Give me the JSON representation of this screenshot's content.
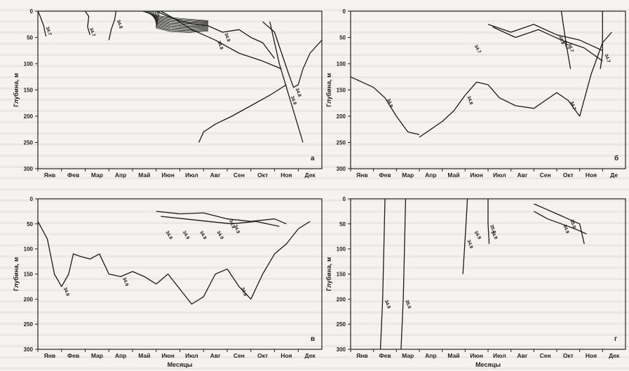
{
  "figure": {
    "y_axis_label": "Глубина, м",
    "x_axis_label": "Месяцы",
    "months_full": [
      "Янв",
      "Фев",
      "Мар",
      "Апр",
      "Май",
      "Июн",
      "Июл",
      "Авг",
      "Сен",
      "Окт",
      "Ноя",
      "Дек"
    ],
    "months_panel_b": [
      "Янв",
      "Фев",
      "Мар",
      "Апр",
      "Май",
      "Июн",
      "Июл",
      "Авг",
      "Сен",
      "Окт",
      "Ноя",
      "Де"
    ],
    "y_ticks": [
      "0",
      "50",
      "100",
      "150",
      "200",
      "250",
      "300"
    ]
  },
  "chart_data": [
    {
      "type": "line",
      "panel_letter": "а",
      "ylim": [
        0,
        300
      ],
      "y_inverted": true,
      "contour_labels": [
        "34.7",
        "34.7",
        "34.8",
        "34.9",
        "34.8",
        "34.8",
        "34.9"
      ],
      "series": [
        {
          "values_month_depth": [
            [
              0.0,
              0
            ],
            [
              0.1,
              10
            ],
            [
              0.25,
              28
            ],
            [
              0.3,
              40
            ],
            [
              0.35,
              48
            ]
          ]
        },
        {
          "values_month_depth": [
            [
              2.0,
              0
            ],
            [
              2.15,
              10
            ],
            [
              2.1,
              30
            ],
            [
              2.2,
              45
            ]
          ]
        },
        {
          "values_month_depth": [
            [
              3.0,
              55
            ],
            [
              3.1,
              35
            ],
            [
              3.25,
              15
            ],
            [
              3.3,
              0
            ]
          ]
        },
        {
          "values_month_depth": [
            [
              5.0,
              0
            ],
            [
              5.5,
              10
            ],
            [
              6.0,
              18
            ],
            [
              6.6,
              25
            ],
            [
              7.2,
              28
            ],
            [
              7.8,
              40
            ],
            [
              8.5,
              35
            ],
            [
              9.0,
              50
            ],
            [
              9.5,
              60
            ],
            [
              10.0,
              90
            ]
          ]
        },
        {
          "values_month_depth": [
            [
              5.2,
              0
            ],
            [
              5.8,
              15
            ],
            [
              6.5,
              35
            ],
            [
              7.5,
              55
            ],
            [
              8.5,
              80
            ],
            [
              9.5,
              95
            ],
            [
              10.3,
              110
            ]
          ]
        },
        {
          "values_month_depth": [
            [
              9.5,
              20
            ],
            [
              10.0,
              40
            ],
            [
              10.3,
              80
            ],
            [
              10.6,
              120
            ],
            [
              10.8,
              145
            ],
            [
              11.0,
              140
            ],
            [
              11.2,
              110
            ],
            [
              11.5,
              80
            ],
            [
              12.0,
              55
            ]
          ]
        },
        {
          "values_month_depth": [
            [
              9.8,
              20
            ],
            [
              10.2,
              100
            ],
            [
              10.6,
              160
            ],
            [
              11.0,
              220
            ],
            [
              11.2,
              250
            ]
          ]
        },
        {
          "values_month_depth": [
            [
              6.8,
              250
            ],
            [
              7.0,
              230
            ],
            [
              7.5,
              215
            ],
            [
              8.2,
              200
            ],
            [
              9.0,
              180
            ],
            [
              9.8,
              160
            ],
            [
              10.5,
              140
            ]
          ]
        }
      ]
    },
    {
      "type": "line",
      "panel_letter": "б",
      "ylim": [
        0,
        300
      ],
      "y_inverted": true,
      "contour_labels": [
        "34.9",
        "34.8",
        "34.7",
        "34.8",
        "34.7",
        "34.7",
        "34.7",
        "34.7"
      ],
      "series": [
        {
          "values_month_depth": [
            [
              0.0,
              125
            ],
            [
              0.5,
              135
            ],
            [
              1.0,
              145
            ],
            [
              1.5,
              165
            ],
            [
              2.0,
              200
            ],
            [
              2.5,
              230
            ],
            [
              3.0,
              235
            ]
          ]
        },
        {
          "values_month_depth": [
            [
              3.0,
              240
            ],
            [
              3.5,
              225
            ],
            [
              4.0,
              210
            ],
            [
              4.5,
              190
            ],
            [
              5.0,
              160
            ],
            [
              5.5,
              135
            ],
            [
              6.0,
              140
            ],
            [
              6.5,
              165
            ]
          ]
        },
        {
          "values_month_depth": [
            [
              6.5,
              165
            ],
            [
              7.2,
              180
            ],
            [
              8.0,
              185
            ],
            [
              8.5,
              170
            ],
            [
              9.0,
              155
            ],
            [
              9.5,
              170
            ],
            [
              10.0,
              200
            ],
            [
              10.5,
              120
            ],
            [
              11.0,
              60
            ],
            [
              11.4,
              40
            ]
          ]
        },
        {
          "values_month_depth": [
            [
              6.0,
              25
            ],
            [
              7.0,
              40
            ],
            [
              8.0,
              25
            ],
            [
              9.0,
              45
            ],
            [
              10.0,
              55
            ],
            [
              11.0,
              75
            ]
          ]
        },
        {
          "values_month_depth": [
            [
              6.2,
              30
            ],
            [
              7.2,
              50
            ],
            [
              8.2,
              35
            ],
            [
              9.2,
              55
            ],
            [
              10.2,
              70
            ],
            [
              11.0,
              95
            ]
          ]
        },
        {
          "values_month_depth": [
            [
              11.0,
              0
            ],
            [
              11.0,
              80
            ],
            [
              10.9,
              110
            ]
          ]
        },
        {
          "values_month_depth": [
            [
              9.2,
              0
            ],
            [
              9.4,
              60
            ],
            [
              9.6,
              110
            ]
          ]
        }
      ]
    },
    {
      "type": "line",
      "panel_letter": "в",
      "ylim": [
        0,
        300
      ],
      "y_inverted": true,
      "contour_labels": [
        "34.9",
        "34.9",
        "34.9",
        "34.9",
        "34.9",
        "34.9",
        "34.9",
        "34.9",
        "34.9"
      ],
      "series": [
        {
          "values_month_depth": [
            [
              0.0,
              45
            ],
            [
              0.4,
              80
            ],
            [
              0.7,
              150
            ],
            [
              1.0,
              175
            ],
            [
              1.3,
              150
            ],
            [
              1.5,
              110
            ],
            [
              1.8,
              115
            ]
          ]
        },
        {
          "values_month_depth": [
            [
              1.8,
              115
            ],
            [
              2.2,
              120
            ],
            [
              2.6,
              110
            ],
            [
              3.0,
              150
            ],
            [
              3.5,
              155
            ],
            [
              4.0,
              145
            ],
            [
              4.5,
              155
            ],
            [
              5.0,
              170
            ]
          ]
        },
        {
          "values_month_depth": [
            [
              5.0,
              170
            ],
            [
              5.5,
              150
            ],
            [
              6.0,
              180
            ],
            [
              6.5,
              210
            ],
            [
              7.0,
              195
            ],
            [
              7.5,
              150
            ],
            [
              8.0,
              140
            ],
            [
              8.5,
              175
            ],
            [
              9.0,
              200
            ],
            [
              9.5,
              150
            ],
            [
              10.0,
              110
            ],
            [
              10.5,
              90
            ],
            [
              11.0,
              60
            ],
            [
              11.5,
              45
            ]
          ]
        },
        {
          "values_month_depth": [
            [
              5.0,
              25
            ],
            [
              6.0,
              30
            ],
            [
              7.0,
              28
            ],
            [
              8.0,
              40
            ],
            [
              9.0,
              45
            ],
            [
              10.0,
              40
            ],
            [
              10.5,
              50
            ]
          ]
        },
        {
          "values_month_depth": [
            [
              5.2,
              35
            ],
            [
              6.2,
              40
            ],
            [
              7.2,
              45
            ],
            [
              8.2,
              50
            ],
            [
              9.2,
              45
            ],
            [
              10.2,
              55
            ]
          ]
        }
      ]
    },
    {
      "type": "line",
      "panel_letter": "г",
      "ylim": [
        0,
        300
      ],
      "y_inverted": true,
      "contour_labels": [
        "34.9",
        "35.0",
        "34.9",
        "35.0",
        "35.0",
        "34.9",
        "34.9",
        "34.9"
      ],
      "series": [
        {
          "values_month_depth": [
            [
              1.5,
              0
            ],
            [
              1.45,
              100
            ],
            [
              1.4,
              200
            ],
            [
              1.3,
              300
            ]
          ]
        },
        {
          "values_month_depth": [
            [
              2.4,
              0
            ],
            [
              2.35,
              100
            ],
            [
              2.3,
              200
            ],
            [
              2.2,
              300
            ]
          ]
        },
        {
          "values_month_depth": [
            [
              5.1,
              0
            ],
            [
              5.0,
              80
            ],
            [
              4.9,
              150
            ]
          ]
        },
        {
          "values_month_depth": [
            [
              6.0,
              0
            ],
            [
              6.0,
              50
            ],
            [
              6.05,
              90
            ]
          ]
        },
        {
          "values_month_depth": [
            [
              8.0,
              10
            ],
            [
              8.5,
              20
            ],
            [
              9.0,
              30
            ],
            [
              9.5,
              40
            ],
            [
              10.0,
              50
            ],
            [
              10.2,
              90
            ]
          ]
        },
        {
          "values_month_depth": [
            [
              8.0,
              25
            ],
            [
              8.6,
              40
            ],
            [
              9.2,
              50
            ],
            [
              9.8,
              60
            ],
            [
              10.3,
              70
            ]
          ]
        }
      ]
    }
  ]
}
